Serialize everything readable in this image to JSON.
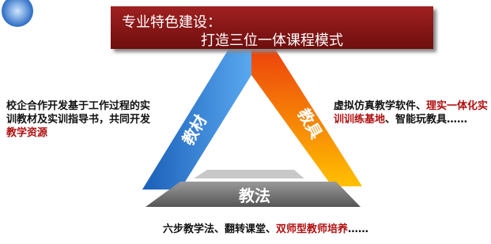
{
  "title": {
    "line1": "专业特色建设：",
    "line2": "打造三位一体课程模式"
  },
  "triangle": {
    "left_side": "教材",
    "right_side": "教具",
    "bottom_side": "教法"
  },
  "left_text": {
    "segments": [
      {
        "text": "校企合作开发基于工作过程的实训教材及实训指导书，共同开发",
        "emphasis": false
      },
      {
        "text": "教学资源",
        "emphasis": true
      }
    ]
  },
  "right_text": {
    "segments": [
      {
        "text": "虚拟仿真教学软件、",
        "emphasis": false
      },
      {
        "text": "理实一体化实训训练基地",
        "emphasis": true
      },
      {
        "text": "、智能玩教具……",
        "emphasis": false
      }
    ]
  },
  "bottom_text": {
    "segments": [
      {
        "text": "六步教学法、翻转课堂、",
        "emphasis": false
      },
      {
        "text": "双师型教师培养",
        "emphasis": true
      },
      {
        "text": "……",
        "emphasis": false
      }
    ]
  }
}
